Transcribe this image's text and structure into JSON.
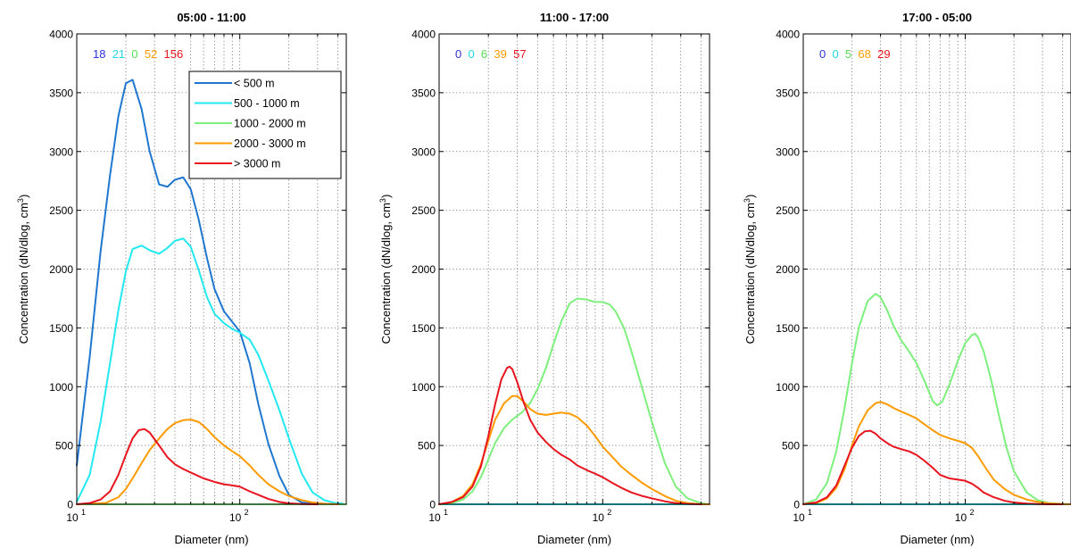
{
  "figure": {
    "x_axis_label": "Diameter (nm)",
    "y_axis_label": "Concentration (dN/dlog, cm3)",
    "y_axis_label_base": "Concentration (dN/dlog, cm",
    "y_axis_label_sup": "3",
    "y_axis_label_end": ")"
  },
  "legend": {
    "panel": 0,
    "entries": [
      {
        "label": "< 500 m",
        "color": "#1f77d0"
      },
      {
        "label": "500 - 1000 m",
        "color": "#22e8f0"
      },
      {
        "label": "1000 - 2000 m",
        "color": "#7df07d"
      },
      {
        "label": "2000 - 3000 m",
        "color": "#ff9a00"
      },
      {
        "label": "> 3000 m",
        "color": "#e8141e"
      }
    ]
  },
  "chart_data": [
    {
      "type": "line",
      "title": "05:00 - 11:00",
      "xlabel": "Diameter (nm)",
      "ylabel": "Concentration (dN/dlog, cm3)",
      "xscale": "log",
      "xlim": [
        10,
        450
      ],
      "ylim": [
        0,
        4000
      ],
      "yticks": [
        0,
        500,
        1000,
        1500,
        2000,
        2500,
        3000,
        3500,
        4000
      ],
      "grid": true,
      "legend_position": "top-right",
      "counts": [
        "18",
        "21",
        "0",
        "52",
        "156"
      ],
      "count_colors": [
        "#2e32d8",
        "#22d8e0",
        "#55dd55",
        "#ff9a00",
        "#e8141e"
      ],
      "series": [
        {
          "name": "< 500 m",
          "color": "#1f77d0",
          "x": [
            10,
            12,
            14,
            16,
            18,
            20,
            22,
            25,
            28,
            32,
            36,
            40,
            45,
            50,
            56,
            63,
            70,
            80,
            90,
            100,
            115,
            130,
            150,
            175,
            200,
            240,
            280
          ],
          "y": [
            330,
            1250,
            2150,
            2800,
            3300,
            3580,
            3610,
            3360,
            3000,
            2720,
            2700,
            2760,
            2780,
            2680,
            2420,
            2090,
            1830,
            1640,
            1550,
            1470,
            1200,
            850,
            510,
            240,
            80,
            15,
            5
          ]
        },
        {
          "name": "500 - 1000 m",
          "color": "#22e8f0",
          "x": [
            10,
            12,
            14,
            16,
            18,
            20,
            22,
            25,
            28,
            32,
            36,
            40,
            45,
            50,
            56,
            63,
            70,
            80,
            90,
            100,
            115,
            130,
            150,
            175,
            200,
            240,
            280,
            330,
            380,
            430
          ],
          "y": [
            20,
            250,
            700,
            1200,
            1650,
            1980,
            2170,
            2200,
            2160,
            2130,
            2180,
            2240,
            2260,
            2190,
            1990,
            1760,
            1620,
            1540,
            1490,
            1460,
            1400,
            1270,
            1050,
            800,
            560,
            260,
            100,
            35,
            12,
            5
          ]
        },
        {
          "name": "1000 - 2000 m",
          "color": "#7df07d",
          "x": [
            10,
            450
          ],
          "y": [
            0,
            0
          ]
        },
        {
          "name": "2000 - 3000 m",
          "color": "#ff9a00",
          "x": [
            10,
            15,
            18,
            20,
            22,
            25,
            28,
            32,
            36,
            40,
            45,
            50,
            56,
            63,
            70,
            80,
            90,
            100,
            115,
            130,
            150,
            175,
            200,
            240,
            280,
            330,
            400
          ],
          "y": [
            0,
            10,
            60,
            130,
            220,
            350,
            460,
            560,
            640,
            690,
            715,
            720,
            700,
            640,
            570,
            500,
            450,
            410,
            330,
            250,
            170,
            110,
            70,
            35,
            15,
            5,
            0
          ]
        },
        {
          "name": "> 3000 m",
          "color": "#e8141e",
          "x": [
            10,
            12,
            14,
            16,
            18,
            20,
            22,
            24,
            26,
            28,
            32,
            36,
            40,
            45,
            50,
            60,
            70,
            80,
            90,
            100,
            115,
            130,
            150,
            175,
            200,
            240,
            300
          ],
          "y": [
            0,
            10,
            40,
            110,
            250,
            420,
            560,
            630,
            640,
            610,
            500,
            400,
            340,
            300,
            270,
            220,
            190,
            170,
            160,
            150,
            110,
            80,
            45,
            20,
            8,
            2,
            0
          ]
        }
      ]
    },
    {
      "type": "line",
      "title": "11:00 - 17:00",
      "xlabel": "Diameter (nm)",
      "ylabel": "Concentration (dN/dlog, cm3)",
      "xscale": "log",
      "xlim": [
        10,
        450
      ],
      "ylim": [
        0,
        4000
      ],
      "yticks": [
        0,
        500,
        1000,
        1500,
        2000,
        2500,
        3000,
        3500,
        4000
      ],
      "grid": true,
      "counts": [
        "0",
        "0",
        "6",
        "39",
        "57"
      ],
      "count_colors": [
        "#2e32d8",
        "#22d8e0",
        "#55dd55",
        "#ff9a00",
        "#e8141e"
      ],
      "series": [
        {
          "name": "< 500 m",
          "color": "#1f77d0",
          "x": [
            10,
            450
          ],
          "y": [
            0,
            0
          ]
        },
        {
          "name": "500 - 1000 m",
          "color": "#22e8f0",
          "x": [
            10,
            450
          ],
          "y": [
            0,
            0
          ]
        },
        {
          "name": "1000 - 2000 m",
          "color": "#7df07d",
          "x": [
            10,
            12,
            14,
            16,
            18,
            20,
            22,
            25,
            28,
            32,
            36,
            40,
            45,
            50,
            56,
            63,
            70,
            80,
            90,
            100,
            110,
            120,
            135,
            150,
            170,
            200,
            240,
            280,
            330,
            400,
            450
          ],
          "y": [
            0,
            10,
            40,
            110,
            230,
            380,
            520,
            650,
            720,
            780,
            860,
            980,
            1160,
            1360,
            1560,
            1710,
            1750,
            1740,
            1720,
            1720,
            1700,
            1640,
            1500,
            1300,
            1040,
            700,
            350,
            150,
            50,
            10,
            0
          ]
        },
        {
          "name": "2000 - 3000 m",
          "color": "#ff9a00",
          "x": [
            10,
            12,
            14,
            16,
            18,
            20,
            22,
            25,
            28,
            30,
            33,
            36,
            40,
            45,
            50,
            56,
            63,
            70,
            80,
            90,
            100,
            115,
            130,
            150,
            175,
            200,
            240,
            280,
            330,
            400,
            450
          ],
          "y": [
            0,
            20,
            70,
            170,
            340,
            540,
            720,
            860,
            920,
            920,
            870,
            810,
            770,
            760,
            770,
            780,
            770,
            740,
            670,
            580,
            490,
            400,
            320,
            250,
            180,
            130,
            70,
            30,
            10,
            0,
            0
          ]
        },
        {
          "name": "> 3000 m",
          "color": "#e8141e",
          "x": [
            10,
            12,
            14,
            16,
            18,
            20,
            22,
            24,
            26,
            27,
            28,
            30,
            33,
            36,
            40,
            45,
            50,
            56,
            63,
            70,
            80,
            90,
            100,
            115,
            130,
            150,
            175,
            200,
            240,
            280,
            330,
            400
          ],
          "y": [
            0,
            20,
            60,
            150,
            320,
            580,
            850,
            1060,
            1160,
            1170,
            1150,
            1040,
            860,
            720,
            610,
            530,
            470,
            420,
            380,
            330,
            290,
            260,
            230,
            180,
            140,
            100,
            70,
            50,
            25,
            10,
            3,
            0
          ]
        }
      ]
    },
    {
      "type": "line",
      "title": "17:00 - 05:00",
      "xlabel": "Diameter (nm)",
      "ylabel": "Concentration (dN/dlog, cm3)",
      "xscale": "log",
      "xlim": [
        10,
        450
      ],
      "ylim": [
        0,
        4000
      ],
      "yticks": [
        0,
        500,
        1000,
        1500,
        2000,
        2500,
        3000,
        3500,
        4000
      ],
      "grid": true,
      "counts": [
        "0",
        "0",
        "5",
        "68",
        "29"
      ],
      "count_colors": [
        "#2e32d8",
        "#22d8e0",
        "#55dd55",
        "#ff9a00",
        "#e8141e"
      ],
      "series": [
        {
          "name": "< 500 m",
          "color": "#1f77d0",
          "x": [
            10,
            450
          ],
          "y": [
            0,
            0
          ]
        },
        {
          "name": "500 - 1000 m",
          "color": "#22e8f0",
          "x": [
            10,
            450
          ],
          "y": [
            0,
            0
          ]
        },
        {
          "name": "1000 - 2000 m",
          "color": "#7df07d",
          "x": [
            10,
            12,
            14,
            16,
            18,
            20,
            22,
            25,
            28,
            30,
            33,
            36,
            40,
            45,
            50,
            56,
            63,
            67,
            72,
            80,
            90,
            100,
            110,
            115,
            120,
            130,
            145,
            160,
            180,
            200,
            240,
            280,
            330,
            400,
            450
          ],
          "y": [
            0,
            40,
            180,
            450,
            820,
            1200,
            1500,
            1730,
            1790,
            1760,
            1650,
            1520,
            1400,
            1300,
            1200,
            1050,
            880,
            840,
            870,
            1020,
            1220,
            1370,
            1440,
            1450,
            1420,
            1300,
            1050,
            780,
            480,
            280,
            100,
            35,
            10,
            2,
            0
          ]
        },
        {
          "name": "2000 - 3000 m",
          "color": "#ff9a00",
          "x": [
            10,
            12,
            14,
            16,
            18,
            20,
            22,
            25,
            28,
            30,
            33,
            36,
            40,
            45,
            50,
            56,
            63,
            70,
            80,
            90,
            100,
            110,
            120,
            135,
            150,
            175,
            200,
            240,
            280,
            330,
            400,
            450
          ],
          "y": [
            0,
            10,
            50,
            140,
            300,
            500,
            660,
            800,
            860,
            870,
            850,
            820,
            790,
            760,
            730,
            680,
            630,
            590,
            560,
            540,
            520,
            480,
            410,
            300,
            210,
            130,
            80,
            40,
            20,
            8,
            2,
            0
          ]
        },
        {
          "name": "> 3000 m",
          "color": "#e8141e",
          "x": [
            10,
            12,
            14,
            16,
            18,
            20,
            22,
            24,
            26,
            28,
            30,
            33,
            36,
            40,
            45,
            50,
            56,
            63,
            70,
            80,
            90,
            100,
            110,
            120,
            130,
            150,
            175,
            200,
            240,
            280,
            330,
            400
          ],
          "y": [
            0,
            15,
            60,
            160,
            330,
            480,
            580,
            620,
            625,
            600,
            560,
            520,
            490,
            470,
            450,
            420,
            370,
            310,
            250,
            220,
            210,
            200,
            175,
            140,
            100,
            60,
            30,
            15,
            6,
            2,
            0,
            0
          ]
        }
      ]
    }
  ]
}
